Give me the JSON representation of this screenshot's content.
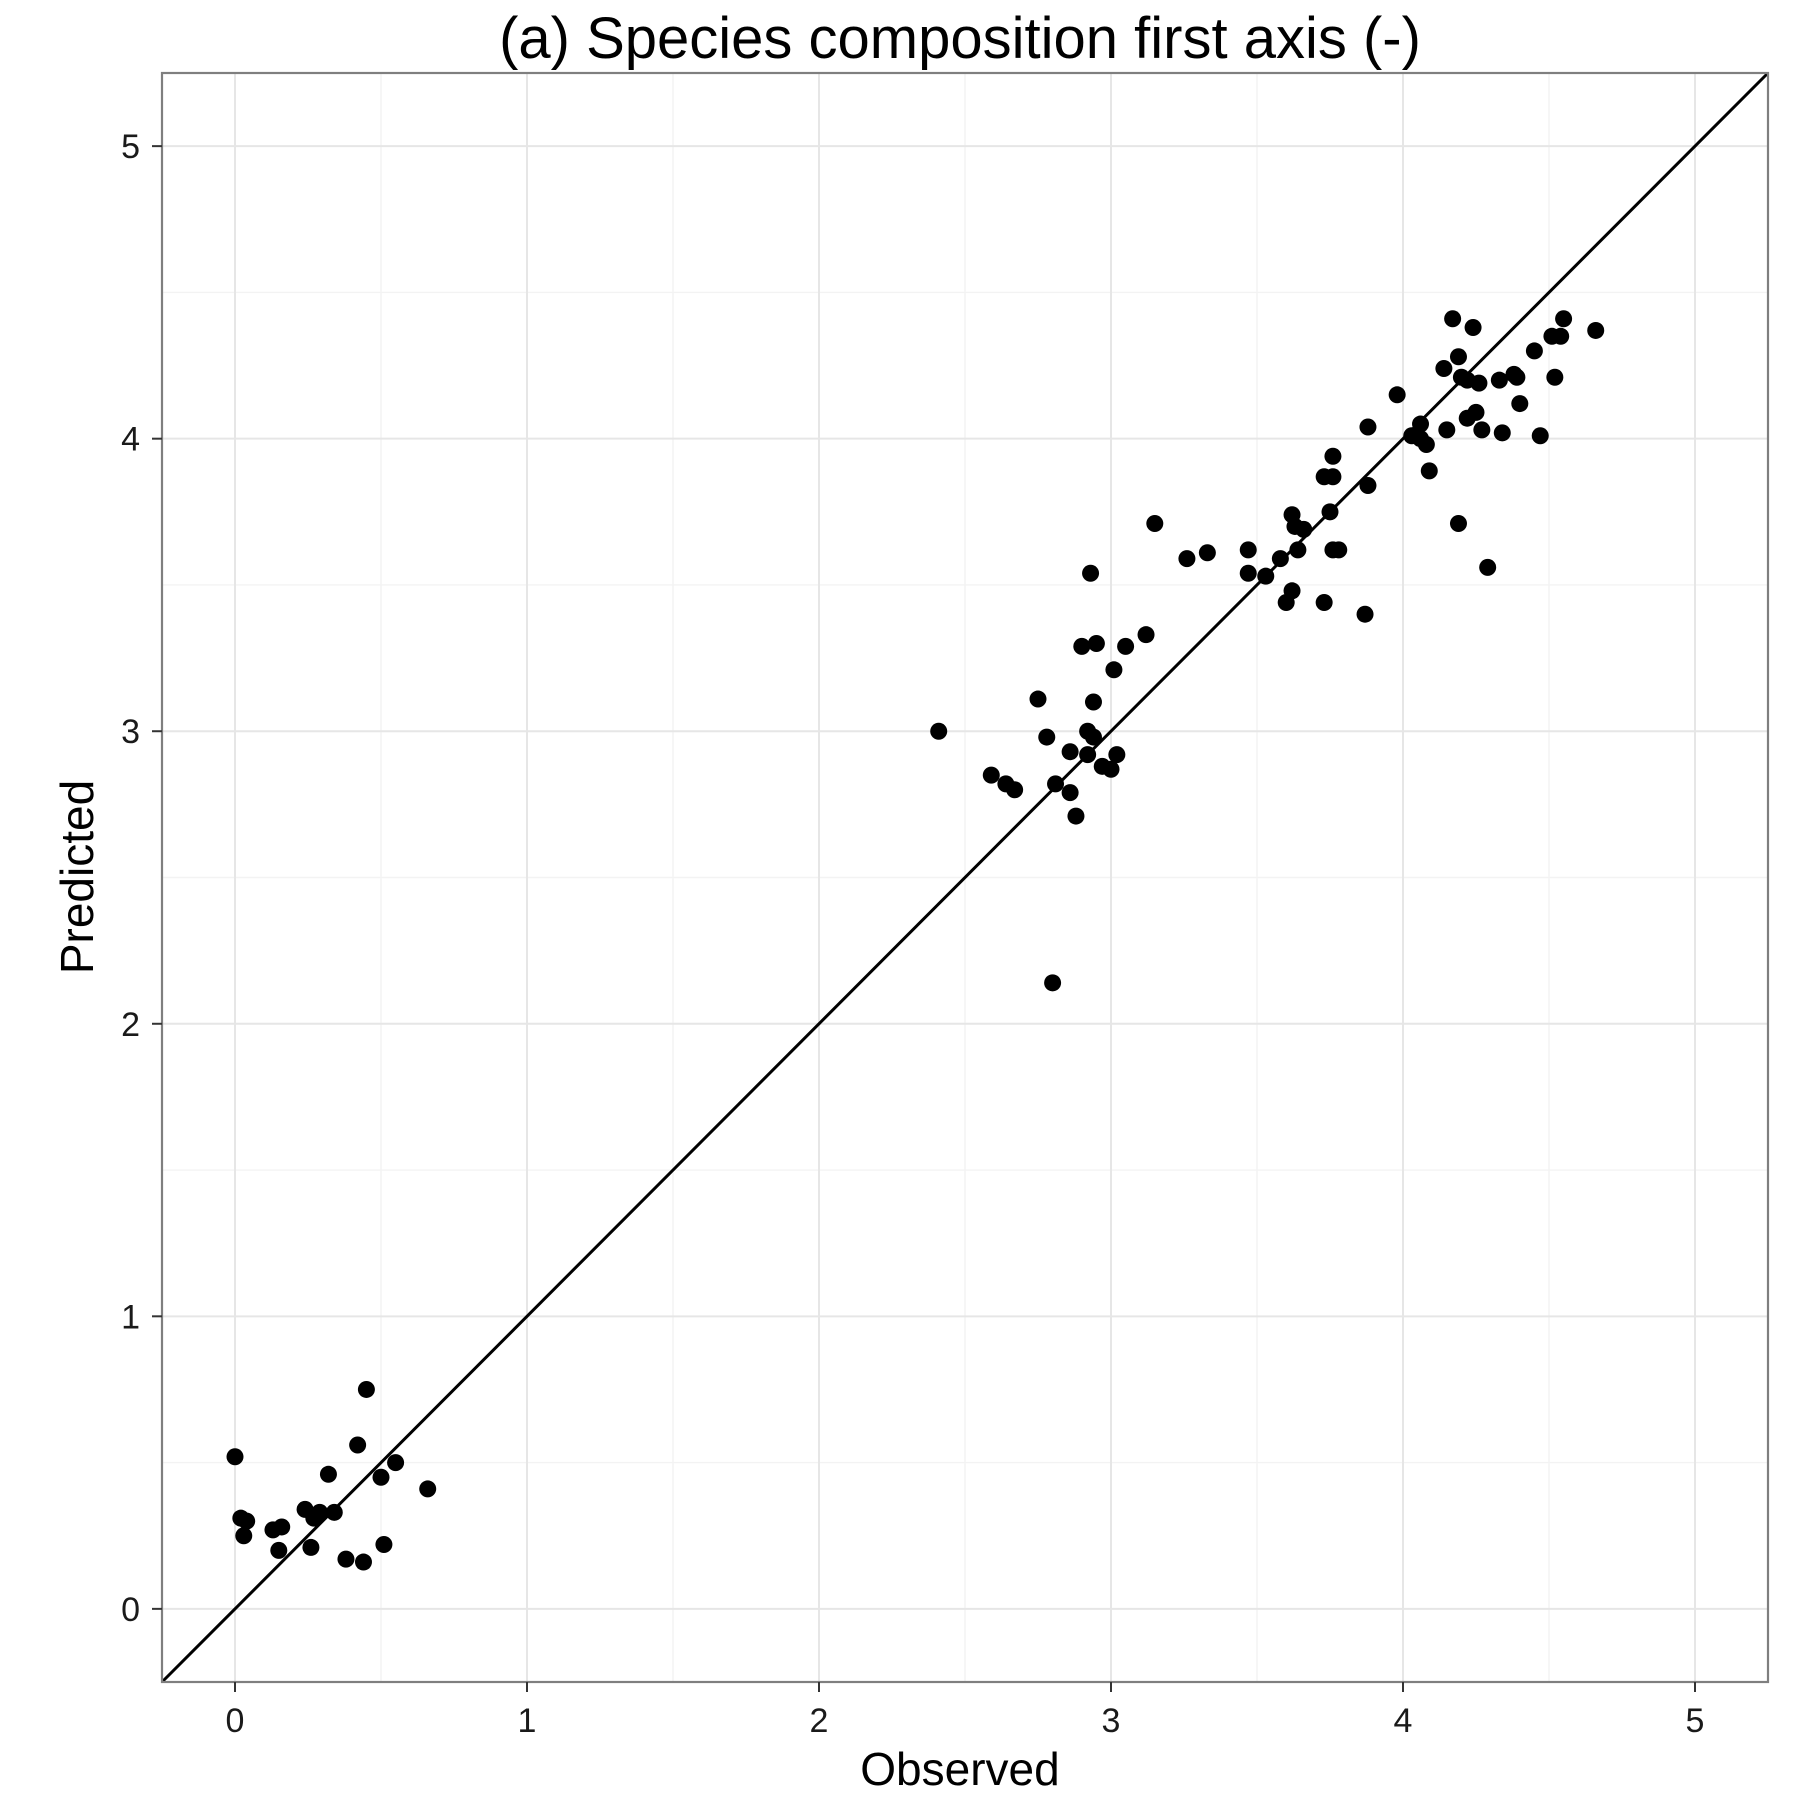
{
  "chart_data": {
    "type": "scatter",
    "title": "(a) Species composition first axis (-)",
    "xlabel": "Observed",
    "ylabel": "Predicted",
    "xlim": [
      -0.25,
      5.25
    ],
    "ylim": [
      -0.25,
      5.25
    ],
    "x_ticks": [
      "0",
      "1",
      "2",
      "3",
      "4",
      "5"
    ],
    "y_ticks": [
      "0",
      "1",
      "2",
      "3",
      "4",
      "5"
    ],
    "grid": true,
    "reference_line": "y = x",
    "colors": {
      "points": "#000000",
      "line": "#000000",
      "grid": "#e6e6e6",
      "background": "#ffffff"
    },
    "points": [
      {
        "x": 0.0,
        "y": 0.52
      },
      {
        "x": 0.02,
        "y": 0.31
      },
      {
        "x": 0.04,
        "y": 0.3
      },
      {
        "x": 0.03,
        "y": 0.25
      },
      {
        "x": 0.13,
        "y": 0.27
      },
      {
        "x": 0.16,
        "y": 0.28
      },
      {
        "x": 0.15,
        "y": 0.2
      },
      {
        "x": 0.24,
        "y": 0.34
      },
      {
        "x": 0.26,
        "y": 0.21
      },
      {
        "x": 0.27,
        "y": 0.31
      },
      {
        "x": 0.29,
        "y": 0.33
      },
      {
        "x": 0.32,
        "y": 0.46
      },
      {
        "x": 0.34,
        "y": 0.33
      },
      {
        "x": 0.38,
        "y": 0.17
      },
      {
        "x": 0.42,
        "y": 0.56
      },
      {
        "x": 0.44,
        "y": 0.16
      },
      {
        "x": 0.45,
        "y": 0.75
      },
      {
        "x": 0.5,
        "y": 0.45
      },
      {
        "x": 0.51,
        "y": 0.22
      },
      {
        "x": 0.55,
        "y": 0.5
      },
      {
        "x": 0.66,
        "y": 0.41
      },
      {
        "x": 2.41,
        "y": 3.0
      },
      {
        "x": 2.59,
        "y": 2.85
      },
      {
        "x": 2.64,
        "y": 2.82
      },
      {
        "x": 2.67,
        "y": 2.8
      },
      {
        "x": 2.75,
        "y": 3.11
      },
      {
        "x": 2.78,
        "y": 2.98
      },
      {
        "x": 2.81,
        "y": 2.82
      },
      {
        "x": 2.8,
        "y": 2.14
      },
      {
        "x": 2.86,
        "y": 2.79
      },
      {
        "x": 2.86,
        "y": 2.93
      },
      {
        "x": 2.88,
        "y": 2.71
      },
      {
        "x": 2.9,
        "y": 3.29
      },
      {
        "x": 2.92,
        "y": 3.0
      },
      {
        "x": 2.92,
        "y": 2.92
      },
      {
        "x": 2.93,
        "y": 3.54
      },
      {
        "x": 2.94,
        "y": 3.1
      },
      {
        "x": 2.94,
        "y": 2.98
      },
      {
        "x": 2.95,
        "y": 3.3
      },
      {
        "x": 2.97,
        "y": 2.88
      },
      {
        "x": 3.0,
        "y": 2.87
      },
      {
        "x": 3.01,
        "y": 3.21
      },
      {
        "x": 3.02,
        "y": 2.92
      },
      {
        "x": 3.05,
        "y": 3.29
      },
      {
        "x": 3.12,
        "y": 3.33
      },
      {
        "x": 3.15,
        "y": 3.71
      },
      {
        "x": 3.26,
        "y": 3.59
      },
      {
        "x": 3.33,
        "y": 3.61
      },
      {
        "x": 3.47,
        "y": 3.62
      },
      {
        "x": 3.47,
        "y": 3.54
      },
      {
        "x": 3.53,
        "y": 3.53
      },
      {
        "x": 3.58,
        "y": 3.59
      },
      {
        "x": 3.6,
        "y": 3.44
      },
      {
        "x": 3.62,
        "y": 3.48
      },
      {
        "x": 3.62,
        "y": 3.74
      },
      {
        "x": 3.63,
        "y": 3.7
      },
      {
        "x": 3.64,
        "y": 3.62
      },
      {
        "x": 3.66,
        "y": 3.69
      },
      {
        "x": 3.73,
        "y": 3.87
      },
      {
        "x": 3.73,
        "y": 3.44
      },
      {
        "x": 3.75,
        "y": 3.75
      },
      {
        "x": 3.76,
        "y": 3.94
      },
      {
        "x": 3.76,
        "y": 3.87
      },
      {
        "x": 3.76,
        "y": 3.62
      },
      {
        "x": 3.78,
        "y": 3.62
      },
      {
        "x": 3.87,
        "y": 3.4
      },
      {
        "x": 3.88,
        "y": 4.04
      },
      {
        "x": 3.88,
        "y": 3.84
      },
      {
        "x": 3.98,
        "y": 4.15
      },
      {
        "x": 4.03,
        "y": 4.01
      },
      {
        "x": 4.06,
        "y": 4.05
      },
      {
        "x": 4.06,
        "y": 4.0
      },
      {
        "x": 4.08,
        "y": 3.98
      },
      {
        "x": 4.09,
        "y": 3.89
      },
      {
        "x": 4.14,
        "y": 4.24
      },
      {
        "x": 4.15,
        "y": 4.03
      },
      {
        "x": 4.17,
        "y": 4.41
      },
      {
        "x": 4.19,
        "y": 4.28
      },
      {
        "x": 4.19,
        "y": 3.71
      },
      {
        "x": 4.2,
        "y": 4.21
      },
      {
        "x": 4.22,
        "y": 4.2
      },
      {
        "x": 4.22,
        "y": 4.07
      },
      {
        "x": 4.24,
        "y": 4.38
      },
      {
        "x": 4.25,
        "y": 4.09
      },
      {
        "x": 4.26,
        "y": 4.19
      },
      {
        "x": 4.27,
        "y": 4.03
      },
      {
        "x": 4.29,
        "y": 3.56
      },
      {
        "x": 4.33,
        "y": 4.2
      },
      {
        "x": 4.34,
        "y": 4.02
      },
      {
        "x": 4.38,
        "y": 4.22
      },
      {
        "x": 4.39,
        "y": 4.21
      },
      {
        "x": 4.4,
        "y": 4.12
      },
      {
        "x": 4.45,
        "y": 4.3
      },
      {
        "x": 4.47,
        "y": 4.01
      },
      {
        "x": 4.51,
        "y": 4.35
      },
      {
        "x": 4.52,
        "y": 4.21
      },
      {
        "x": 4.54,
        "y": 4.35
      },
      {
        "x": 4.55,
        "y": 4.41
      },
      {
        "x": 4.66,
        "y": 4.37
      }
    ]
  }
}
